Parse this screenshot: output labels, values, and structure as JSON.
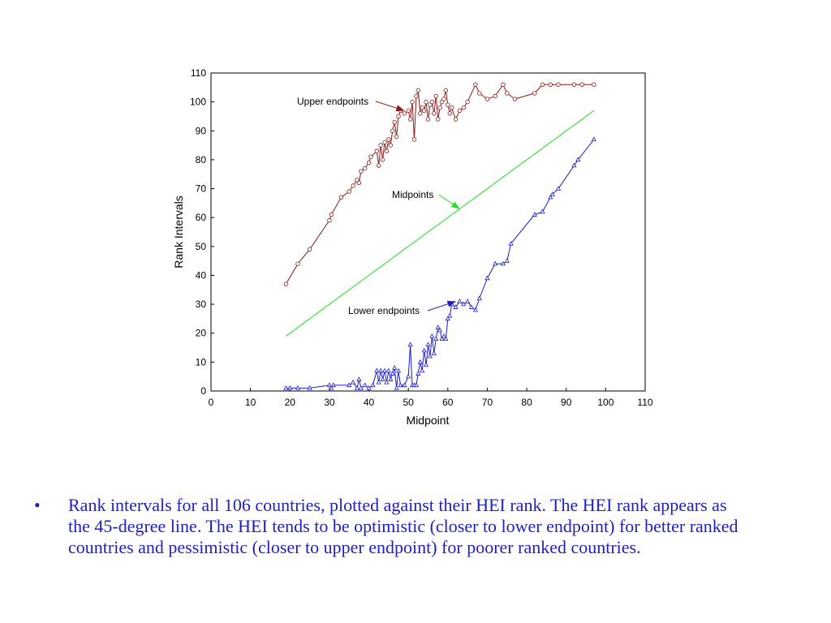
{
  "chart_data": {
    "type": "line",
    "xlabel": "Midpoint",
    "ylabel": "Rank Intervals",
    "xlim": [
      0,
      110
    ],
    "ylim": [
      0,
      110
    ],
    "xticks": [
      0,
      10,
      20,
      30,
      40,
      50,
      60,
      70,
      80,
      90,
      100,
      110
    ],
    "yticks": [
      0,
      10,
      20,
      30,
      40,
      50,
      60,
      70,
      80,
      90,
      100,
      110
    ],
    "grid": false,
    "series": [
      {
        "name": "Upper endpoints",
        "color": "#8b1a1a",
        "marker": "circle",
        "x": [
          19,
          22,
          25,
          30,
          30.5,
          33,
          35,
          36,
          37,
          37.5,
          38,
          39,
          40,
          40.5,
          42,
          42.5,
          43,
          43.5,
          44,
          44.5,
          45,
          45.5,
          46,
          46.5,
          47,
          47.5,
          48,
          49,
          50,
          50.5,
          51,
          51.5,
          52,
          52.5,
          53,
          53.5,
          54,
          54.5,
          55,
          55.5,
          56,
          56.5,
          57,
          57.5,
          58,
          58.5,
          59,
          59.5,
          60,
          60.5,
          61,
          62,
          63,
          64,
          65,
          67,
          68,
          70,
          72,
          74,
          75,
          77,
          82,
          84,
          86,
          88,
          92,
          94,
          97
        ],
        "y": [
          37,
          44,
          49,
          59,
          61,
          67,
          69,
          71,
          73,
          72,
          76,
          77,
          79,
          81,
          83,
          78,
          85,
          80,
          86,
          83,
          87,
          85,
          90,
          93,
          88,
          95,
          97,
          96,
          97,
          94,
          100,
          87,
          102,
          104,
          96,
          98,
          97,
          100,
          94,
          99,
          100,
          96,
          102,
          94,
          98,
          100,
          101,
          104,
          99,
          96,
          98,
          94,
          97,
          98,
          100,
          106,
          103,
          101,
          102,
          106,
          103,
          101,
          103,
          106,
          106,
          106,
          106,
          106,
          106
        ]
      },
      {
        "name": "Midpoints",
        "color": "#22dd22",
        "marker": "none",
        "x": [
          19,
          97
        ],
        "y": [
          19,
          97
        ]
      },
      {
        "name": "Lower endpoints",
        "color": "#1a1acc",
        "marker": "triangle",
        "x": [
          19,
          20,
          22,
          25,
          30,
          30.5,
          31,
          35,
          36,
          37,
          37.5,
          38,
          39,
          40,
          41,
          42,
          42.5,
          43,
          43.5,
          44,
          44.5,
          45,
          45.5,
          46,
          46.5,
          47,
          47.5,
          48,
          49,
          50,
          50.5,
          51,
          51.5,
          52,
          52.5,
          53,
          53.5,
          54,
          54.5,
          55,
          55.5,
          56,
          56.5,
          57,
          57.5,
          58,
          58.5,
          59,
          59.5,
          60,
          60.5,
          61,
          62,
          63,
          64,
          65,
          66,
          67,
          68,
          70,
          72,
          74,
          75,
          76,
          82,
          84,
          86,
          86.5,
          88,
          92,
          93,
          97
        ],
        "y": [
          1,
          1,
          1,
          1,
          2,
          1,
          2,
          2,
          3,
          1,
          4,
          1,
          2,
          1,
          2,
          7,
          3,
          7,
          4,
          7,
          3,
          7,
          4,
          6,
          8,
          1,
          7,
          2,
          2,
          5,
          16,
          2,
          2,
          2,
          6,
          10,
          7,
          14,
          9,
          16,
          12,
          19,
          13,
          18,
          22,
          21,
          18,
          19,
          18,
          25,
          26,
          30,
          29,
          31,
          30,
          31,
          29,
          28,
          32,
          39,
          44,
          44,
          45,
          51,
          61,
          62,
          67,
          68,
          70,
          78,
          80,
          87
        ]
      }
    ],
    "annotations": [
      {
        "text": "Upper endpoints",
        "target": [
          49,
          97
        ]
      },
      {
        "text": "Midpoints",
        "target": [
          63,
          63
        ]
      },
      {
        "text": "Lower endpoints",
        "target": [
          62,
          31
        ]
      }
    ]
  },
  "caption": {
    "bullet": "•",
    "text": "Rank intervals for all 106 countries, plotted against their HEI rank.  The HEI rank appears as the 45-degree line.  The HEI tends to be optimistic (closer to lower endpoint) for better ranked countries and pessimistic (closer to upper endpoint) for poorer ranked countries."
  }
}
